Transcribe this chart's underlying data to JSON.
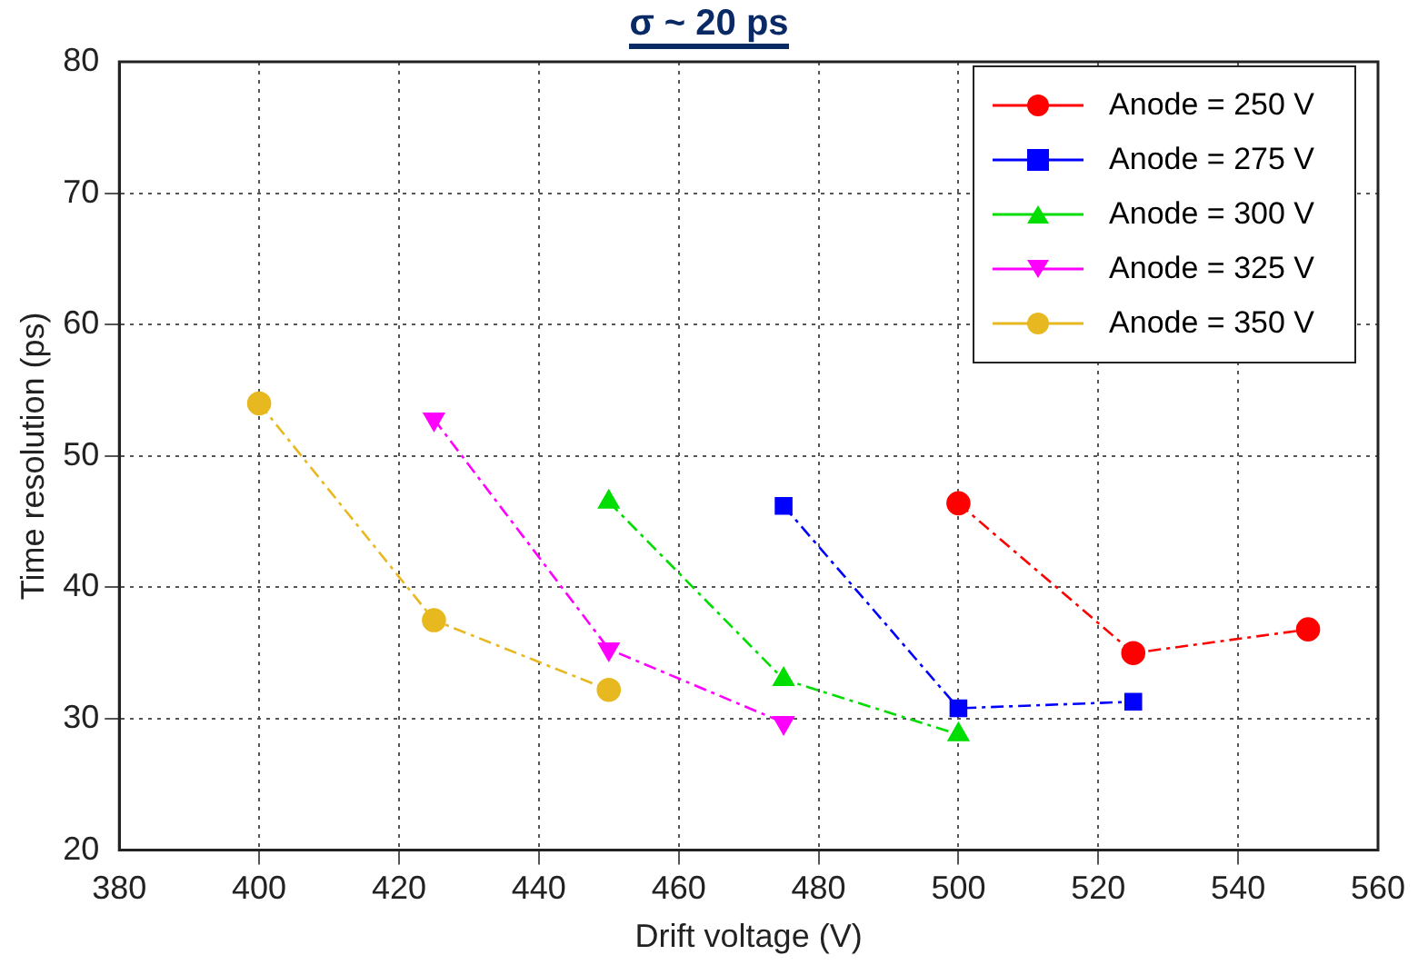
{
  "chart_data": {
    "type": "line",
    "title": "σ ~ 20 ps",
    "xlabel": "Drift voltage (V)",
    "ylabel": "Time resolution (ps)",
    "xlim": [
      380,
      560
    ],
    "xticks": [
      380,
      400,
      420,
      440,
      460,
      480,
      500,
      520,
      540,
      560
    ],
    "ylim": [
      20,
      80
    ],
    "yticks": [
      20,
      30,
      40,
      50,
      60,
      70,
      80
    ],
    "grid": true,
    "legend": "top right",
    "line_style": "dashed",
    "series": [
      {
        "name": "Anode = 250 V",
        "color": "#ff0000",
        "marker": "circle",
        "x": [
          500,
          525,
          550
        ],
        "values": [
          46.4,
          35.0,
          36.8
        ]
      },
      {
        "name": "Anode = 275 V",
        "color": "#0000ff",
        "marker": "square",
        "x": [
          475,
          500,
          525
        ],
        "values": [
          46.2,
          30.8,
          31.3
        ]
      },
      {
        "name": "Anode = 300 V",
        "color": "#00dd00",
        "marker": "triangle",
        "x": [
          450,
          475,
          500
        ],
        "values": [
          46.5,
          33.0,
          28.8
        ]
      },
      {
        "name": "Anode = 325 V",
        "color": "#ff00ff",
        "marker": "triangle",
        "x": [
          425,
          450,
          475
        ],
        "values": [
          52.8,
          35.3,
          29.7
        ]
      },
      {
        "name": "Anode = 350 V",
        "color": "#e8b820",
        "marker": "circle",
        "x": [
          400,
          425,
          450
        ],
        "values": [
          54.0,
          37.5,
          32.2
        ]
      }
    ]
  }
}
